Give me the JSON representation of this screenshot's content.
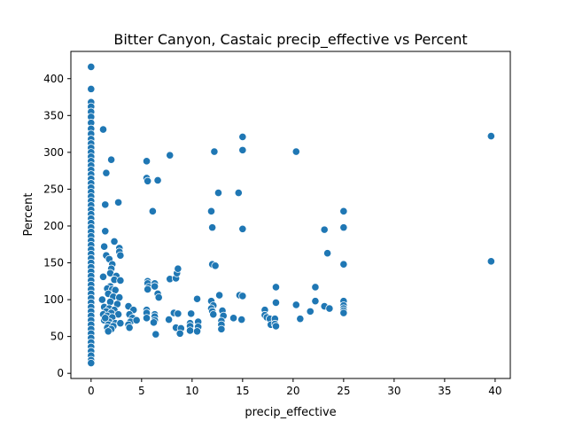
{
  "chart_data": {
    "type": "scatter",
    "title": "Bitter Canyon, Castaic precip_effective vs Percent",
    "xlabel": "precip_effective",
    "ylabel": "Percent",
    "xlim": [
      -2,
      41.5
    ],
    "ylim": [
      -7,
      437
    ],
    "xticks": [
      0,
      5,
      10,
      15,
      20,
      25,
      30,
      35,
      40
    ],
    "yticks": [
      0,
      50,
      100,
      150,
      200,
      250,
      300,
      350,
      400
    ],
    "grid": false,
    "marker_color": "#1f77b4",
    "marker_edge_color": "#ffffff",
    "points": [
      [
        0,
        416
      ],
      [
        0,
        386
      ],
      [
        0,
        368
      ],
      [
        0,
        362
      ],
      [
        0,
        355
      ],
      [
        0,
        348
      ],
      [
        0,
        340
      ],
      [
        0,
        332
      ],
      [
        0,
        325
      ],
      [
        0,
        318
      ],
      [
        0,
        312
      ],
      [
        0,
        306
      ],
      [
        0,
        300
      ],
      [
        0,
        294
      ],
      [
        0,
        288
      ],
      [
        0,
        282
      ],
      [
        0,
        276
      ],
      [
        0,
        270
      ],
      [
        0,
        264
      ],
      [
        0,
        258
      ],
      [
        0,
        252
      ],
      [
        0,
        246
      ],
      [
        0,
        240
      ],
      [
        0,
        234
      ],
      [
        0,
        228
      ],
      [
        0,
        222
      ],
      [
        0,
        216
      ],
      [
        0,
        210
      ],
      [
        0,
        204
      ],
      [
        0,
        198
      ],
      [
        0,
        192
      ],
      [
        0,
        186
      ],
      [
        0,
        180
      ],
      [
        0,
        174
      ],
      [
        0,
        168
      ],
      [
        0,
        162
      ],
      [
        0,
        156
      ],
      [
        0,
        150
      ],
      [
        0,
        144
      ],
      [
        0,
        138
      ],
      [
        0,
        132
      ],
      [
        0,
        126
      ],
      [
        0,
        120
      ],
      [
        0,
        114
      ],
      [
        0,
        108
      ],
      [
        0,
        102
      ],
      [
        0,
        96
      ],
      [
        0,
        90
      ],
      [
        0,
        84
      ],
      [
        0,
        78
      ],
      [
        0,
        72
      ],
      [
        0,
        66
      ],
      [
        0,
        60
      ],
      [
        0,
        54
      ],
      [
        0,
        48
      ],
      [
        0,
        42
      ],
      [
        0,
        36
      ],
      [
        0,
        30
      ],
      [
        0,
        24
      ],
      [
        0,
        18
      ],
      [
        0,
        14
      ],
      [
        1.2,
        331
      ],
      [
        1.5,
        272
      ],
      [
        2.0,
        290
      ],
      [
        1.4,
        229
      ],
      [
        2.7,
        232
      ],
      [
        1.4,
        193
      ],
      [
        1.3,
        172
      ],
      [
        2.3,
        179
      ],
      [
        2.8,
        170
      ],
      [
        2.8,
        165
      ],
      [
        2.9,
        160
      ],
      [
        1.5,
        160
      ],
      [
        1.8,
        155
      ],
      [
        2.1,
        148
      ],
      [
        2.0,
        142
      ],
      [
        1.9,
        136
      ],
      [
        1.2,
        131
      ],
      [
        2.5,
        132
      ],
      [
        2.3,
        127
      ],
      [
        2.9,
        126
      ],
      [
        1.9,
        118
      ],
      [
        1.6,
        115
      ],
      [
        2.1,
        114
      ],
      [
        2.4,
        113
      ],
      [
        1.7,
        108
      ],
      [
        2.2,
        104
      ],
      [
        2.8,
        103
      ],
      [
        1.1,
        100
      ],
      [
        1.9,
        97
      ],
      [
        2.6,
        94
      ],
      [
        1.3,
        90
      ],
      [
        1.8,
        88
      ],
      [
        2.3,
        86
      ],
      [
        1.5,
        84
      ],
      [
        2.0,
        82
      ],
      [
        1.2,
        80
      ],
      [
        2.7,
        80
      ],
      [
        1.6,
        78
      ],
      [
        2.1,
        76
      ],
      [
        1.3,
        72
      ],
      [
        1.8,
        70
      ],
      [
        2.4,
        68
      ],
      [
        1.7,
        66
      ],
      [
        2.2,
        64
      ],
      [
        1.6,
        62
      ],
      [
        2.0,
        60
      ],
      [
        1.7,
        57
      ],
      [
        2.9,
        68
      ],
      [
        1.4,
        75
      ],
      [
        3.7,
        91
      ],
      [
        4.2,
        86
      ],
      [
        3.8,
        80
      ],
      [
        4.1,
        75
      ],
      [
        3.9,
        70
      ],
      [
        3.7,
        66
      ],
      [
        4.5,
        72
      ],
      [
        3.8,
        62
      ],
      [
        5.5,
        288
      ],
      [
        5.5,
        265
      ],
      [
        5.6,
        261
      ],
      [
        6.6,
        262
      ],
      [
        6.1,
        220
      ],
      [
        7.8,
        296
      ],
      [
        5.6,
        125
      ],
      [
        5.6,
        122
      ],
      [
        5.7,
        117
      ],
      [
        5.6,
        114
      ],
      [
        6.3,
        122
      ],
      [
        6.3,
        118
      ],
      [
        5.5,
        86
      ],
      [
        5.5,
        82
      ],
      [
        6.3,
        80
      ],
      [
        6.3,
        77
      ],
      [
        5.5,
        75
      ],
      [
        6.3,
        72
      ],
      [
        6.2,
        69
      ],
      [
        6.4,
        53
      ],
      [
        6.6,
        108
      ],
      [
        6.7,
        103
      ],
      [
        7.7,
        73
      ],
      [
        7.8,
        128
      ],
      [
        8.4,
        129
      ],
      [
        8.5,
        136
      ],
      [
        8.6,
        142
      ],
      [
        8.2,
        82
      ],
      [
        8.6,
        81
      ],
      [
        8.4,
        62
      ],
      [
        8.9,
        61
      ],
      [
        8.8,
        54
      ],
      [
        9.9,
        81
      ],
      [
        9.8,
        68
      ],
      [
        9.8,
        64
      ],
      [
        9.8,
        58
      ],
      [
        10.5,
        101
      ],
      [
        10.6,
        70
      ],
      [
        10.6,
        63
      ],
      [
        10.5,
        57
      ],
      [
        12.2,
        301
      ],
      [
        11.9,
        220
      ],
      [
        12.0,
        198
      ],
      [
        12.0,
        148
      ],
      [
        12.3,
        146
      ],
      [
        11.9,
        98
      ],
      [
        12.1,
        92
      ],
      [
        11.9,
        88
      ],
      [
        12.0,
        84
      ],
      [
        12.1,
        80
      ],
      [
        12.7,
        106
      ],
      [
        12.6,
        245
      ],
      [
        13.0,
        85
      ],
      [
        13.1,
        78
      ],
      [
        12.9,
        71
      ],
      [
        12.9,
        66
      ],
      [
        12.9,
        60
      ],
      [
        14.1,
        75
      ],
      [
        14.6,
        245
      ],
      [
        15.0,
        321
      ],
      [
        15.0,
        303
      ],
      [
        15.0,
        196
      ],
      [
        14.7,
        106
      ],
      [
        15.0,
        105
      ],
      [
        14.9,
        73
      ],
      [
        17.2,
        86
      ],
      [
        17.2,
        79
      ],
      [
        17.4,
        76
      ],
      [
        17.7,
        74
      ],
      [
        17.8,
        66
      ],
      [
        18.2,
        74
      ],
      [
        18.3,
        117
      ],
      [
        18.3,
        96
      ],
      [
        18.2,
        67
      ],
      [
        18.3,
        64
      ],
      [
        20.3,
        301
      ],
      [
        20.3,
        93
      ],
      [
        20.7,
        74
      ],
      [
        21.7,
        84
      ],
      [
        22.2,
        117
      ],
      [
        22.2,
        98
      ],
      [
        23.1,
        195
      ],
      [
        23.1,
        91
      ],
      [
        23.4,
        163
      ],
      [
        23.6,
        88
      ],
      [
        25.0,
        220
      ],
      [
        25.0,
        198
      ],
      [
        25.0,
        148
      ],
      [
        25.0,
        98
      ],
      [
        25.0,
        92
      ],
      [
        25.0,
        88
      ],
      [
        25.0,
        85
      ],
      [
        25.0,
        82
      ],
      [
        39.6,
        322
      ],
      [
        39.6,
        152
      ]
    ]
  }
}
